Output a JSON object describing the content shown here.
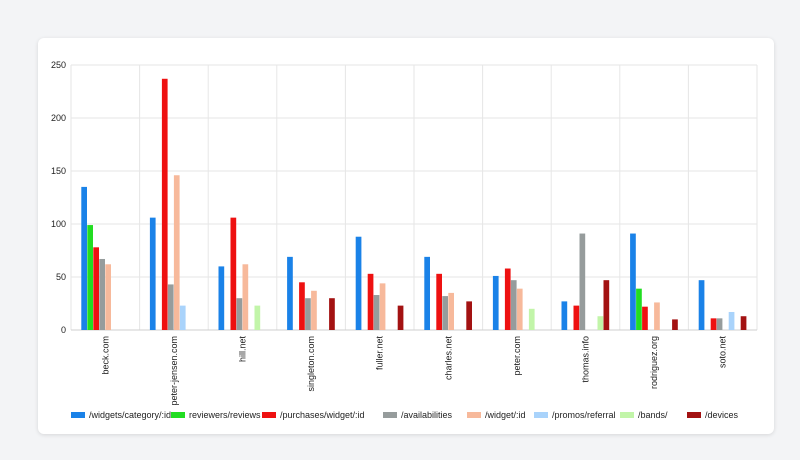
{
  "chart_data": {
    "type": "bar",
    "title": "",
    "xlabel": "",
    "ylabel": "",
    "ylim": [
      0,
      250
    ],
    "yticks": [
      "0",
      "50",
      "100",
      "150",
      "200",
      "250"
    ],
    "grid": true,
    "legend_position": "bottom",
    "categories": [
      "beck.com",
      "peter-jensen.com",
      "hill.net",
      "singleton.com",
      "fuller.net",
      "charles.net",
      "peter.com",
      "thomas.info",
      "rodriguez.org",
      "soto.net"
    ],
    "series": [
      {
        "name": "/widgets/category/:id",
        "color": "#1a82e8",
        "values": [
          135,
          106,
          60,
          69,
          88,
          69,
          51,
          27,
          91,
          47
        ]
      },
      {
        "name": "reviewers/reviews",
        "color": "#22dd22",
        "values": [
          99,
          0,
          0,
          0,
          0,
          0,
          0,
          0,
          39,
          0
        ]
      },
      {
        "name": "/purchases/widget/:id",
        "color": "#ee1111",
        "values": [
          78,
          237,
          106,
          45,
          53,
          53,
          58,
          23,
          22,
          11
        ]
      },
      {
        "name": "/availabilities",
        "color": "#969c9c",
        "values": [
          67,
          43,
          30,
          30,
          33,
          32,
          47,
          91,
          0,
          11
        ]
      },
      {
        "name": "/widget/:id",
        "color": "#f7b99b",
        "values": [
          62,
          146,
          62,
          37,
          44,
          35,
          39,
          0,
          26,
          0
        ]
      },
      {
        "name": "/promos/referral",
        "color": "#a9d3fb",
        "values": [
          0,
          23,
          0,
          0,
          0,
          0,
          0,
          0,
          0,
          17
        ]
      },
      {
        "name": "/bands/",
        "color": "#c2f5a9",
        "values": [
          0,
          0,
          23,
          0,
          0,
          0,
          20,
          13,
          0,
          0
        ]
      },
      {
        "name": "/devices",
        "color": "#a31212",
        "values": [
          0,
          0,
          0,
          30,
          23,
          27,
          0,
          47,
          10,
          13
        ]
      }
    ]
  }
}
